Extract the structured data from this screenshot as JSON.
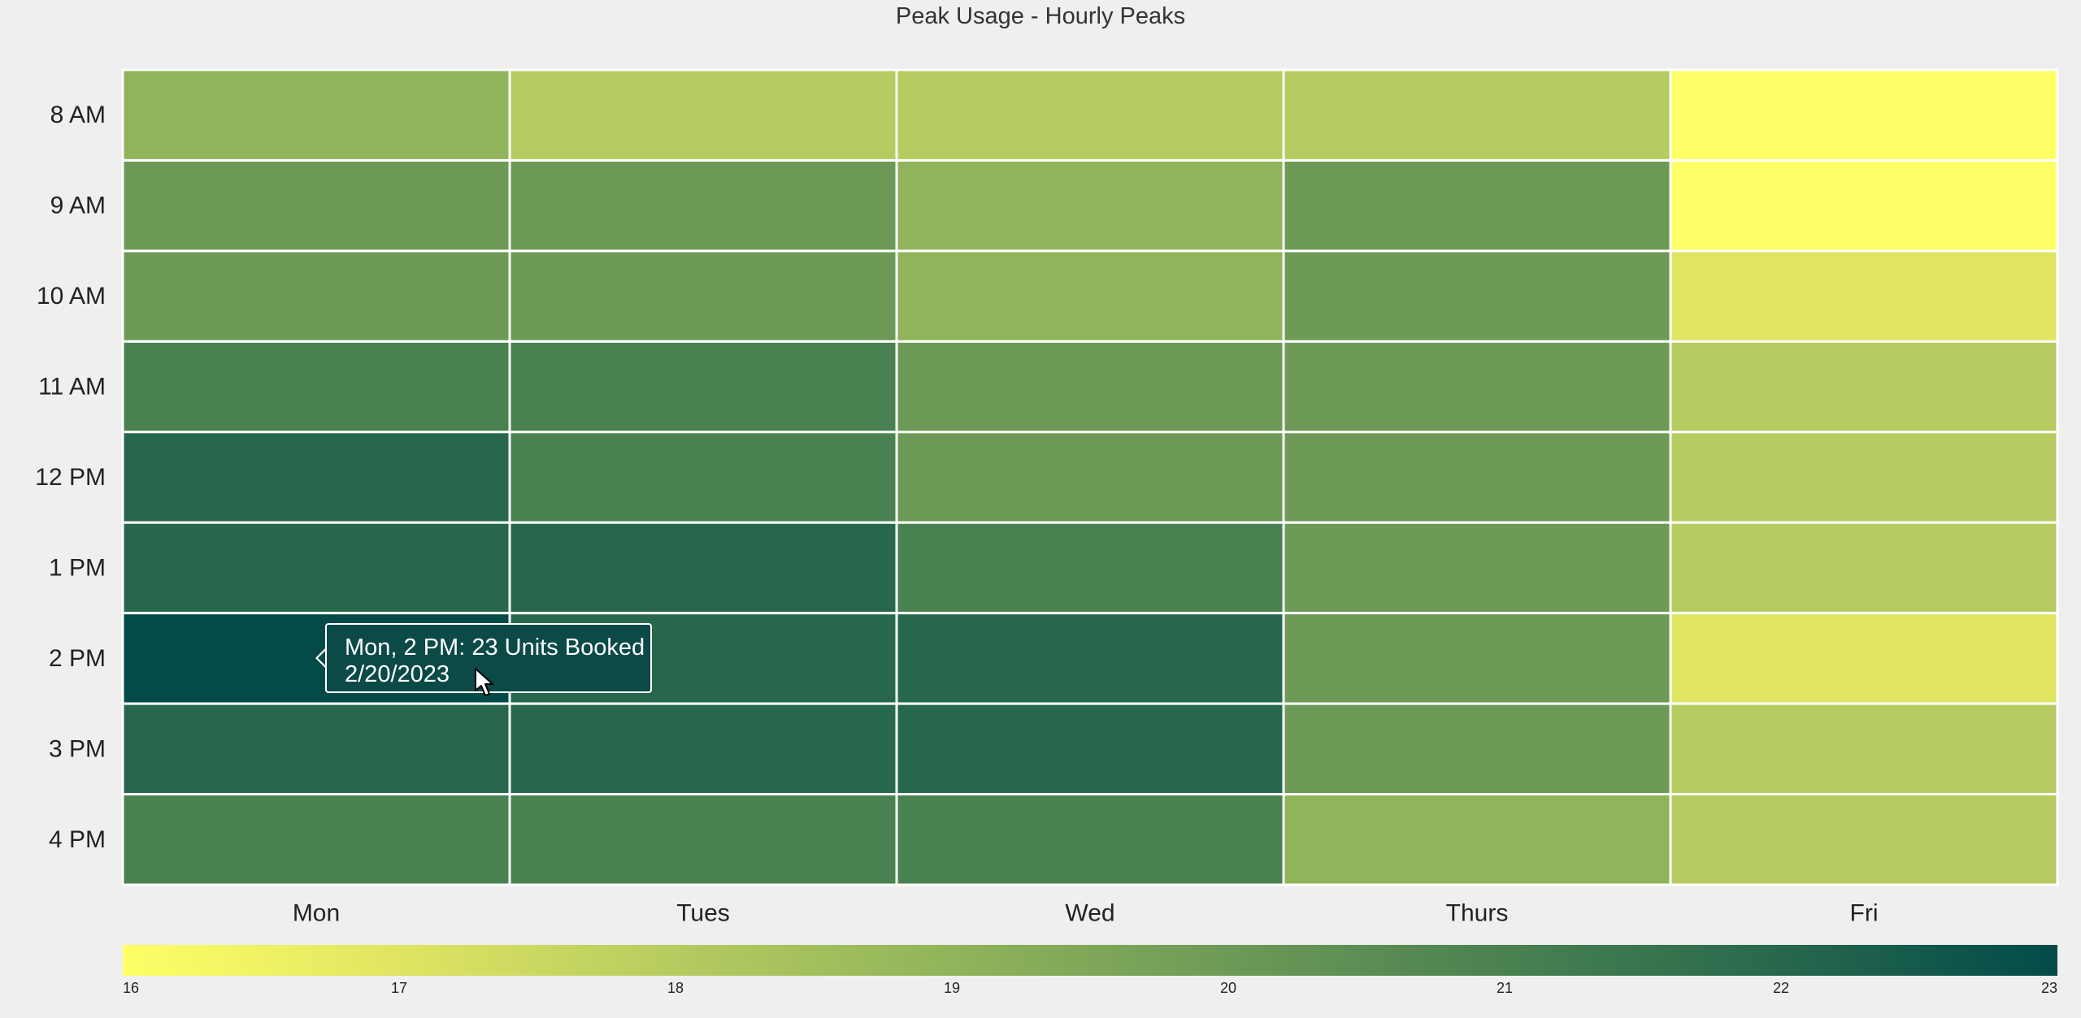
{
  "chart_data": {
    "type": "heatmap",
    "title": "Peak Usage - Hourly Peaks",
    "rows": [
      "8 AM",
      "9 AM",
      "10 AM",
      "11 AM",
      "12 PM",
      "1 PM",
      "2 PM",
      "3 PM",
      "4 PM"
    ],
    "columns": [
      "Mon",
      "Tues",
      "Wed",
      "Thurs",
      "Fri"
    ],
    "values": [
      [
        19,
        18,
        18,
        18,
        16
      ],
      [
        20,
        20,
        19,
        20,
        16
      ],
      [
        20,
        20,
        19,
        20,
        17
      ],
      [
        21,
        21,
        20,
        20,
        18
      ],
      [
        22,
        21,
        20,
        20,
        18
      ],
      [
        22,
        22,
        21,
        20,
        18
      ],
      [
        23,
        22,
        22,
        20,
        17
      ],
      [
        22,
        22,
        22,
        20,
        18
      ],
      [
        21,
        21,
        21,
        19,
        18
      ]
    ],
    "color_scale": {
      "min": 16,
      "max": 23,
      "ticks": [
        "16",
        "17",
        "18",
        "19",
        "20",
        "21",
        "22",
        "23"
      ],
      "stops": [
        "#ffff66",
        "#dfe562",
        "#b6cb60",
        "#90b45a",
        "#6d9a57",
        "#4a8150",
        "#27684d",
        "#034a49"
      ]
    },
    "tooltip": {
      "line1": "Mon, 2 PM: 23 Units Booked",
      "line2": "2/20/2023"
    }
  }
}
